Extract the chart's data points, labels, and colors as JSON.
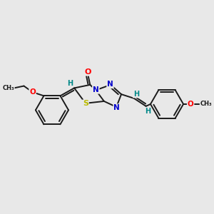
{
  "bg_color": "#e8e8e8",
  "bond_color": "#1a1a1a",
  "atom_colors": {
    "O": "#ff0000",
    "N": "#0000cc",
    "S": "#bbbb00",
    "H": "#008888",
    "C": "#1a1a1a"
  },
  "figsize": [
    3.0,
    3.0
  ],
  "dpi": 100
}
